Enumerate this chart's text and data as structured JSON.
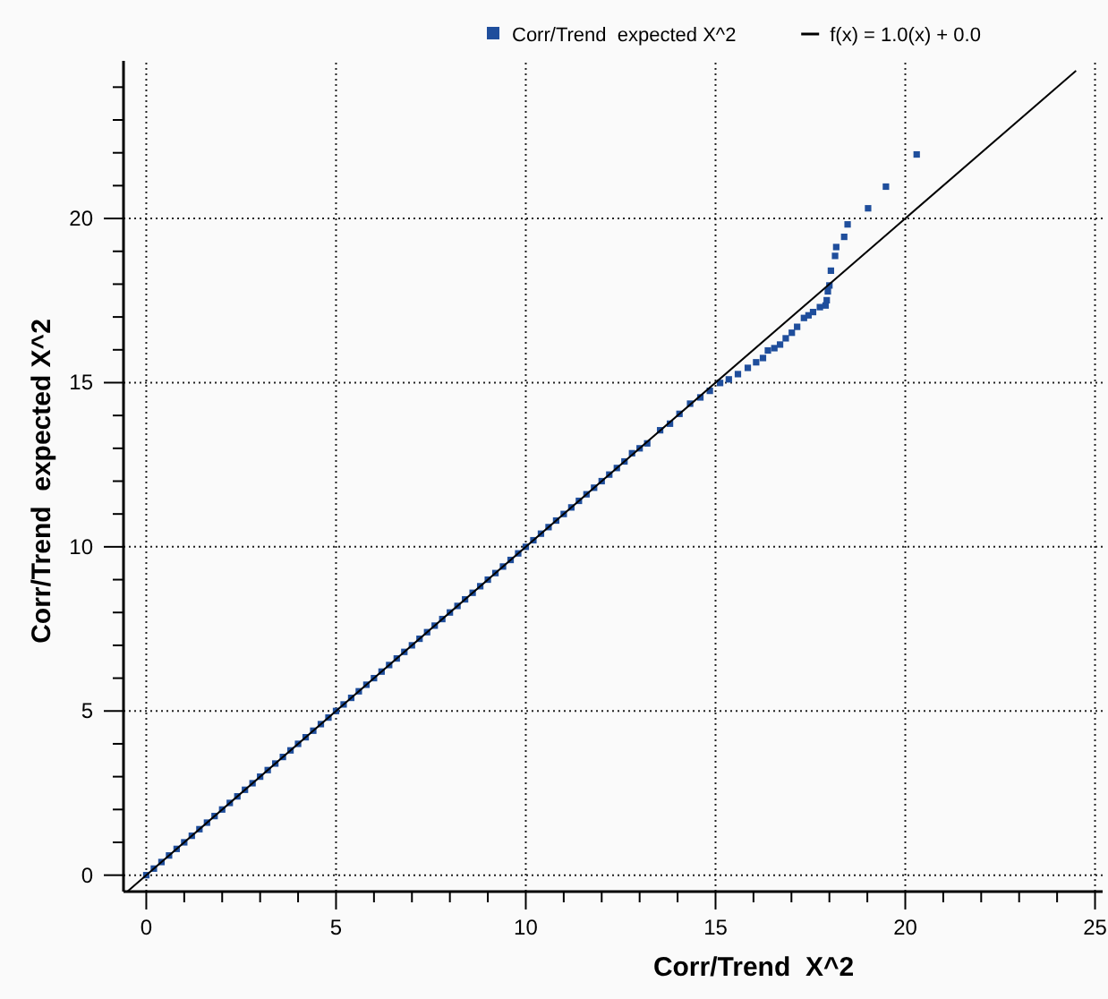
{
  "chart_data": {
    "type": "scatter",
    "xlabel": "Corr/Trend  X^2",
    "ylabel": "Corr/Trend  expected X^2",
    "xlim": [
      -0.6,
      25.2
    ],
    "ylim": [
      -0.5,
      24.8
    ],
    "xticks": [
      0,
      {
        "value": 1,
        "label": null
      },
      {
        "value": 2,
        "label": null
      },
      {
        "value": 3,
        "label": null
      },
      {
        "value": 4,
        "label": null
      },
      5,
      {
        "value": 6,
        "label": null
      },
      {
        "value": 7,
        "label": null
      },
      {
        "value": 8,
        "label": null
      },
      {
        "value": 9,
        "label": null
      },
      10,
      {
        "value": 11,
        "label": null
      },
      {
        "value": 12,
        "label": null
      },
      {
        "value": 13,
        "label": null
      },
      {
        "value": 14,
        "label": null
      },
      15,
      {
        "value": 16,
        "label": null
      },
      {
        "value": 17,
        "label": null
      },
      {
        "value": 18,
        "label": null
      },
      {
        "value": 19,
        "label": null
      },
      20,
      {
        "value": 21,
        "label": null
      },
      {
        "value": 22,
        "label": null
      },
      {
        "value": 23,
        "label": null
      },
      {
        "value": 24,
        "label": null
      },
      25
    ],
    "yticks": [
      0,
      {
        "value": 1,
        "label": null
      },
      {
        "value": 2,
        "label": null
      },
      {
        "value": 3,
        "label": null
      },
      {
        "value": 4,
        "label": null
      },
      5,
      {
        "value": 6,
        "label": null
      },
      {
        "value": 7,
        "label": null
      },
      {
        "value": 8,
        "label": null
      },
      {
        "value": 9,
        "label": null
      },
      10,
      {
        "value": 11,
        "label": null
      },
      {
        "value": 12,
        "label": null
      },
      {
        "value": 13,
        "label": null
      },
      {
        "value": 14,
        "label": null
      },
      15,
      {
        "value": 16,
        "label": null
      },
      {
        "value": 17,
        "label": null
      },
      {
        "value": 18,
        "label": null
      },
      {
        "value": 19,
        "label": null
      },
      20,
      {
        "value": 21,
        "label": null
      },
      {
        "value": 22,
        "label": null
      },
      {
        "value": 23,
        "label": null
      },
      {
        "value": 24,
        "label": null
      }
    ],
    "grid": true,
    "legend": "top right",
    "series": [
      {
        "name": "Corr/Trend  expected X^2",
        "marker": "square",
        "color": "#1f4e9c",
        "x": [
          0,
          0.2,
          0.4,
          0.6,
          0.8,
          1,
          1.2,
          1.4,
          1.6,
          1.8,
          2,
          2.2,
          2.4,
          2.6,
          2.8,
          3,
          3.2,
          3.4,
          3.6,
          3.8,
          4,
          4.2,
          4.4,
          4.6,
          4.8,
          5,
          5.2,
          5.4,
          5.6,
          5.8,
          6,
          6.2,
          6.4,
          6.6,
          6.8,
          7,
          7.2,
          7.4,
          7.6,
          7.8,
          8,
          8.2,
          8.4,
          8.6,
          8.8,
          9,
          9.2,
          9.4,
          9.6,
          9.8,
          10,
          10.2,
          10.4,
          10.6,
          10.8,
          11,
          11.2,
          11.4,
          11.6,
          11.8,
          12,
          12.2,
          12.4,
          12.6,
          12.8,
          13,
          13.2,
          13.54,
          13.8,
          14.05,
          14.33,
          14.6,
          14.85,
          15.12,
          15.35,
          15.59,
          15.85,
          16.07,
          16.25,
          16.38,
          16.55,
          16.7,
          16.85,
          17.01,
          17.15,
          17.33,
          17.45,
          17.57,
          17.75,
          17.9,
          17.93,
          17.96,
          18,
          18.04,
          18.15,
          18.18,
          18.39,
          18.48,
          19.02,
          19.49,
          20.3
        ],
        "values": [
          0,
          0.2,
          0.4,
          0.6,
          0.8,
          1,
          1.2,
          1.4,
          1.6,
          1.8,
          2,
          2.2,
          2.4,
          2.6,
          2.8,
          3,
          3.2,
          3.4,
          3.6,
          3.8,
          4,
          4.2,
          4.4,
          4.6,
          4.8,
          5,
          5.2,
          5.4,
          5.6,
          5.8,
          6,
          6.2,
          6.4,
          6.6,
          6.8,
          7,
          7.2,
          7.4,
          7.6,
          7.8,
          8,
          8.2,
          8.4,
          8.6,
          8.8,
          9,
          9.2,
          9.4,
          9.6,
          9.8,
          10,
          10.2,
          10.4,
          10.6,
          10.8,
          11,
          11.2,
          11.4,
          11.6,
          11.8,
          12,
          12.2,
          12.4,
          12.6,
          12.85,
          13,
          13.15,
          13.55,
          13.75,
          14.05,
          14.36,
          14.55,
          14.75,
          14.99,
          15.1,
          15.26,
          15.45,
          15.62,
          15.75,
          15.98,
          16.05,
          16.16,
          16.35,
          16.52,
          16.7,
          16.97,
          17.05,
          17.15,
          17.3,
          17.35,
          17.51,
          17.78,
          17.96,
          18.41,
          18.86,
          19.13,
          19.44,
          19.82,
          20.31,
          20.97,
          21.95
        ]
      },
      {
        "name": "f(x) = 1.0(x) + 0.0",
        "type": "line",
        "marker": "none",
        "color": "#000000",
        "x": [
          -0.5,
          24.5
        ],
        "values": [
          -0.5,
          24.5
        ]
      }
    ]
  }
}
